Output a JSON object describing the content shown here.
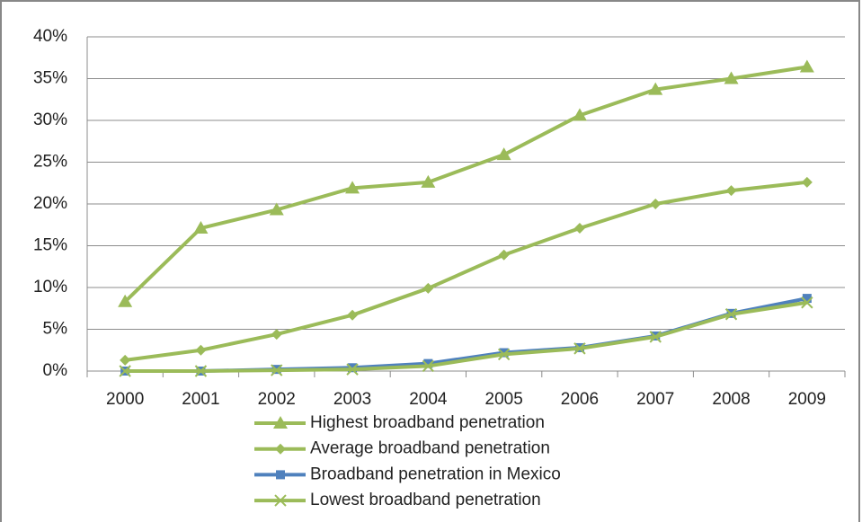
{
  "chart_data": {
    "type": "line",
    "categories": [
      "2000",
      "2001",
      "2002",
      "2003",
      "2004",
      "2005",
      "2006",
      "2007",
      "2008",
      "2009"
    ],
    "series": [
      {
        "name": "Highest broadband penetration",
        "color": "#9bbb59",
        "marker": "triangle",
        "values": [
          8.3,
          17.1,
          19.3,
          21.9,
          22.6,
          25.9,
          30.6,
          33.7,
          35.0,
          36.4
        ]
      },
      {
        "name": "Average broadband penetration",
        "color": "#9bbb59",
        "marker": "diamond",
        "values": [
          1.3,
          2.5,
          4.4,
          6.7,
          9.9,
          13.9,
          17.1,
          20.0,
          21.6,
          22.6
        ]
      },
      {
        "name": "Broadband penetration in Mexico",
        "color": "#4f81bd",
        "marker": "square",
        "values": [
          0.0,
          0.0,
          0.2,
          0.4,
          0.9,
          2.2,
          2.8,
          4.2,
          6.9,
          8.7
        ]
      },
      {
        "name": "Lowest broadband penetration",
        "color": "#9bbb59",
        "marker": "x",
        "values": [
          0.0,
          0.0,
          0.1,
          0.2,
          0.6,
          2.0,
          2.7,
          4.1,
          6.8,
          8.2
        ]
      }
    ],
    "ylim": [
      0,
      40
    ],
    "yticks": [
      {
        "value": 0,
        "label": "0%"
      },
      {
        "value": 5,
        "label": "5%"
      },
      {
        "value": 10,
        "label": "10%"
      },
      {
        "value": 15,
        "label": "15%"
      },
      {
        "value": 20,
        "label": "20%"
      },
      {
        "value": 25,
        "label": "25%"
      },
      {
        "value": 30,
        "label": "30%"
      },
      {
        "value": 35,
        "label": "35%"
      },
      {
        "value": 40,
        "label": "40%"
      }
    ],
    "grid": true,
    "legend": "bottom"
  }
}
